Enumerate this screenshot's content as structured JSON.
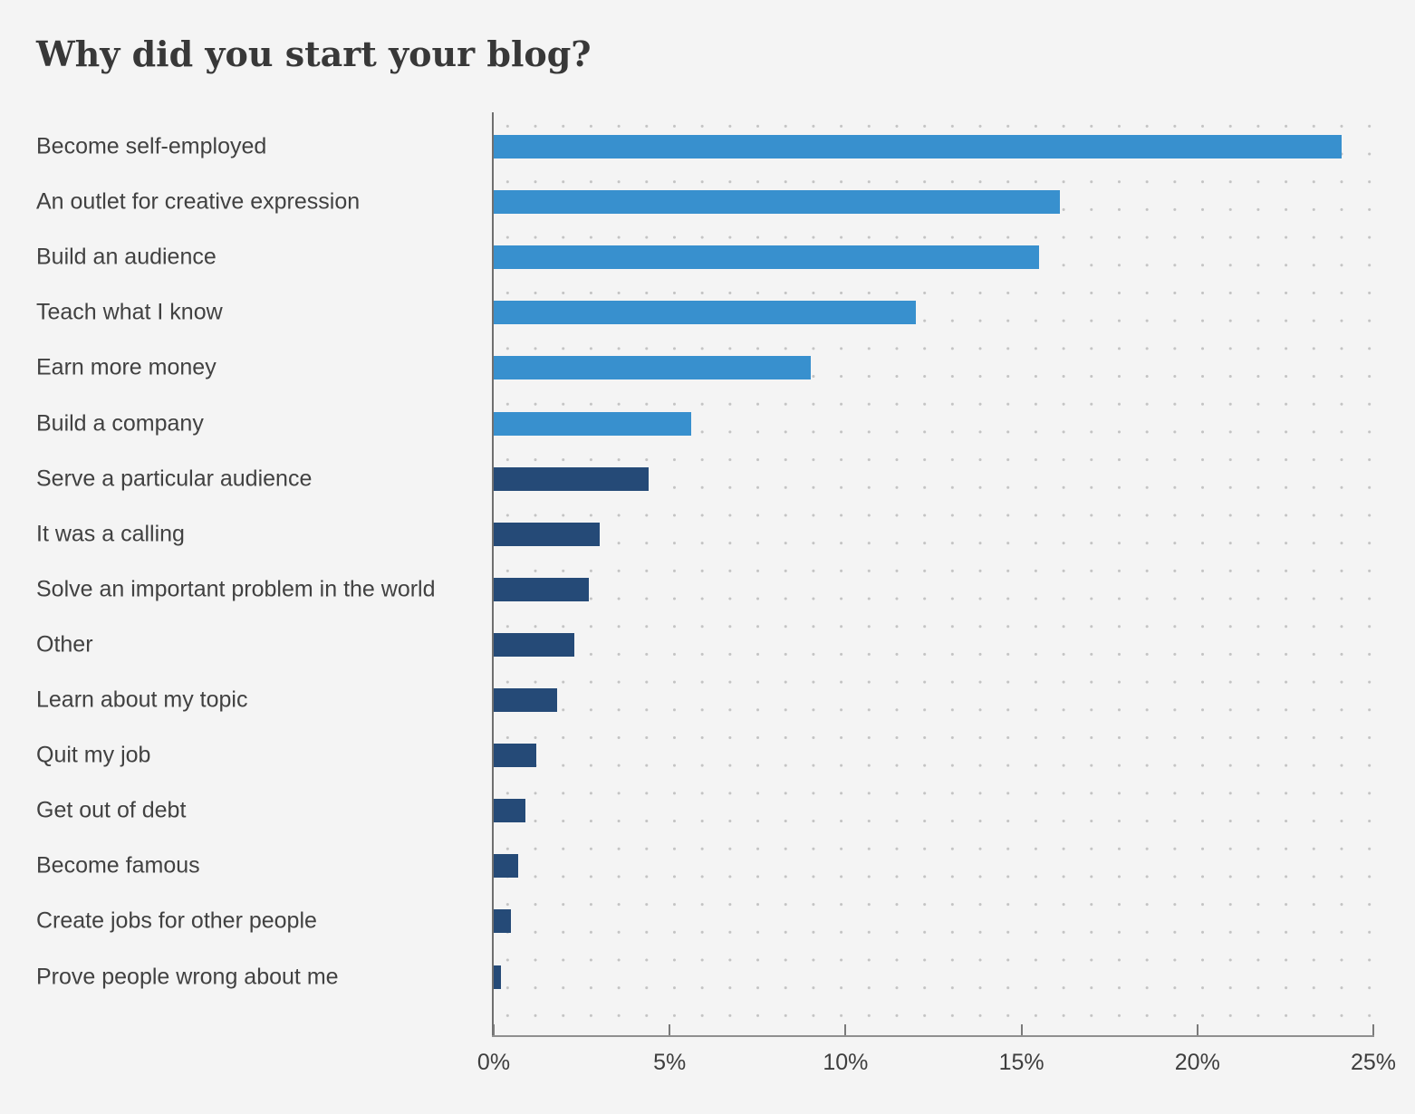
{
  "title": "Why did you start your blog?",
  "colors": {
    "background": "#f4f4f4",
    "bar_light": "#3890ce",
    "bar_dark": "#254a77",
    "axis_line": "#8f8f8f",
    "grid_dot": "#c3c3c3",
    "title_text": "#383838",
    "label_text": "#414141",
    "tick_text": "#3e3e3e"
  },
  "chart_data": {
    "type": "bar",
    "orientation": "horizontal",
    "title": "Why did you start your blog?",
    "xlabel": "",
    "ylabel": "",
    "unit": "%",
    "xlim": [
      0,
      25
    ],
    "x_tick_labels": [
      "0%",
      "5%",
      "10%",
      "15%",
      "20%",
      "25%"
    ],
    "grid": "dot-grid",
    "legend_position": "none",
    "rows": [
      {
        "label": "Become self-employed",
        "value": 24.1,
        "color_key": "bar_light"
      },
      {
        "label": "An outlet for creative expression",
        "value": 16.1,
        "color_key": "bar_light"
      },
      {
        "label": "Build an audience",
        "value": 15.5,
        "color_key": "bar_light"
      },
      {
        "label": "Teach what I know",
        "value": 12.0,
        "color_key": "bar_light"
      },
      {
        "label": "Earn more money",
        "value": 9.0,
        "color_key": "bar_light"
      },
      {
        "label": "Build a company",
        "value": 5.6,
        "color_key": "bar_light"
      },
      {
        "label": "Serve a particular audience",
        "value": 4.4,
        "color_key": "bar_dark"
      },
      {
        "label": "It was a calling",
        "value": 3.0,
        "color_key": "bar_dark"
      },
      {
        "label": "Solve an important problem in the world",
        "value": 2.7,
        "color_key": "bar_dark"
      },
      {
        "label": "Other",
        "value": 2.3,
        "color_key": "bar_dark"
      },
      {
        "label": "Learn about my topic",
        "value": 1.8,
        "color_key": "bar_dark"
      },
      {
        "label": "Quit my job",
        "value": 1.2,
        "color_key": "bar_dark"
      },
      {
        "label": "Get out of debt",
        "value": 0.9,
        "color_key": "bar_dark"
      },
      {
        "label": "Become famous",
        "value": 0.7,
        "color_key": "bar_dark"
      },
      {
        "label": "Create jobs for other people",
        "value": 0.5,
        "color_key": "bar_dark"
      },
      {
        "label": "Prove people wrong about me",
        "value": 0.2,
        "color_key": "bar_dark"
      }
    ]
  }
}
